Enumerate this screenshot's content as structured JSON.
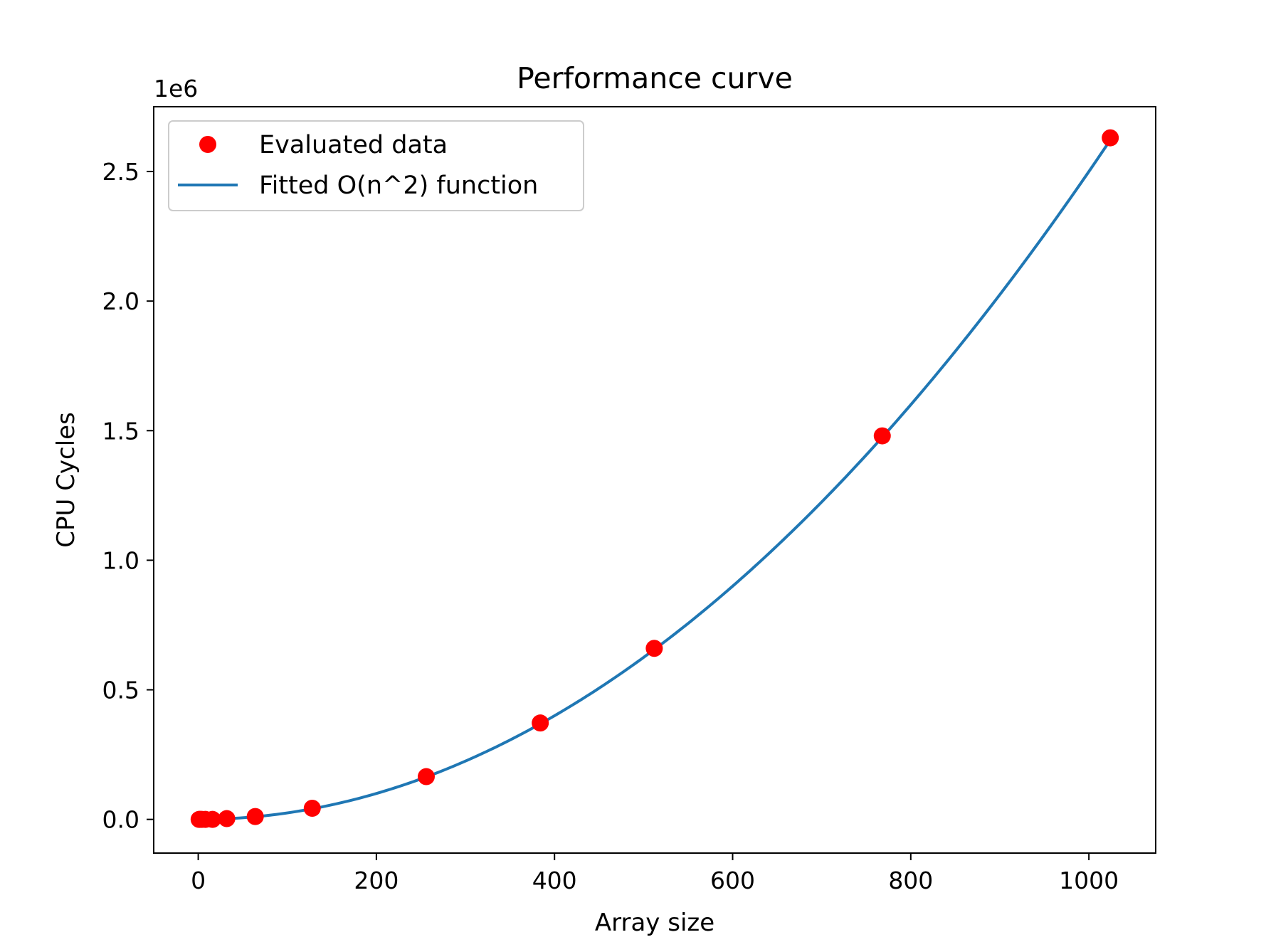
{
  "chart_data": {
    "type": "scatter",
    "title": "Performance curve",
    "xlabel": "Array size",
    "ylabel": "CPU Cycles",
    "y_offset_label": "1e6",
    "xlim": [
      -50,
      1075
    ],
    "ylim": [
      -0.13,
      2.75
    ],
    "y_scale": 1000000,
    "xticks": [
      0,
      200,
      400,
      600,
      800,
      1000
    ],
    "xtick_labels": [
      "0",
      "200",
      "400",
      "600",
      "800",
      "1000"
    ],
    "yticks": [
      0.0,
      0.5,
      1.0,
      1.5,
      2.0,
      2.5
    ],
    "ytick_labels": [
      "0.0",
      "0.5",
      "1.0",
      "1.5",
      "2.0",
      "2.5"
    ],
    "grid": false,
    "legend_position": "top-left",
    "series": [
      {
        "name": "Evaluated data",
        "kind": "scatter",
        "color": "#ff0000",
        "x": [
          1,
          2,
          4,
          8,
          16,
          32,
          64,
          128,
          256,
          384,
          512,
          768,
          1024
        ],
        "y": [
          0.0,
          0.0,
          0.0,
          0.0,
          0.0,
          0.003,
          0.011,
          0.043,
          0.165,
          0.372,
          0.66,
          1.48,
          2.63
        ]
      },
      {
        "name": "Fitted O(n^2) function",
        "kind": "line",
        "color": "#1f77b4",
        "model": "quadratic",
        "coefficient": 2.5,
        "x_range": [
          1,
          1024
        ]
      }
    ]
  }
}
